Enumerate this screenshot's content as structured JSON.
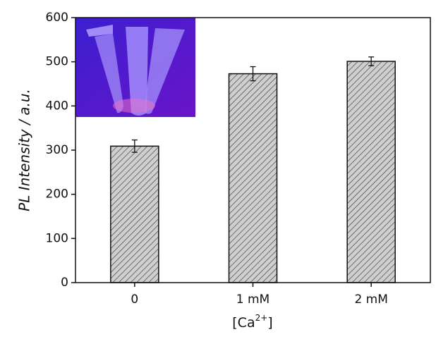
{
  "chart_data": {
    "type": "bar",
    "categories": [
      "0",
      "1 mM",
      "2 mM"
    ],
    "values": [
      309,
      473,
      501
    ],
    "errors": [
      14,
      16,
      10
    ],
    "color": "#c8c8c8",
    "ylabel": "PL Intensity / a.u.",
    "xlabel": [
      "[Ca",
      "2+",
      "]"
    ],
    "ylim": [
      0,
      600
    ],
    "yticks": [
      0,
      100,
      200,
      300,
      400,
      500,
      600
    ]
  }
}
